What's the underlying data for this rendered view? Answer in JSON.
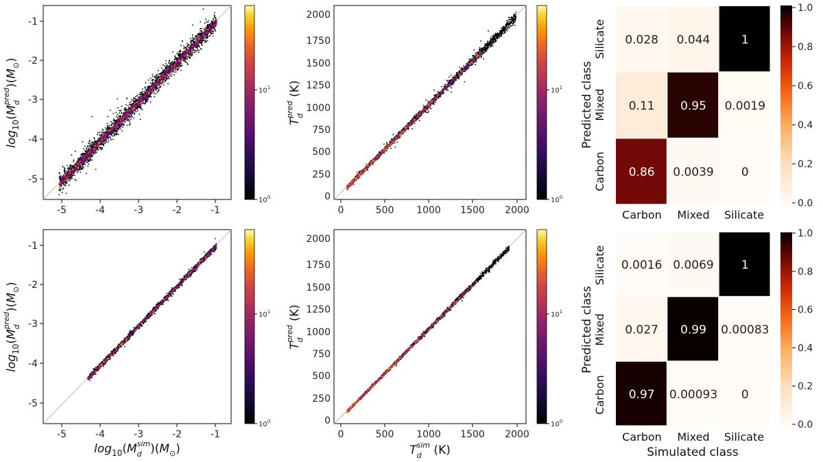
{
  "chart_data": [
    {
      "id": "p1",
      "type": "scatter",
      "subtype": "2d-histogram",
      "xlim": [
        -5.5,
        -0.6
      ],
      "ylim": [
        -5.5,
        -0.6
      ],
      "xticks": [
        "-5",
        "-4",
        "-3",
        "-2",
        "-1"
      ],
      "yticks": [
        "-5",
        "-4",
        "-3",
        "-2",
        "-1"
      ],
      "ylabel": "log10(Md^pred)(M⊙)",
      "xlabel": "",
      "spread": 0.13,
      "diagonal": true,
      "colorbar": {
        "scale": "log",
        "ticks": [
          "10^0",
          "10^1"
        ],
        "cmap": "inferno"
      }
    },
    {
      "id": "p2",
      "type": "scatter",
      "subtype": "2d-histogram",
      "xlim": [
        -80,
        2100
      ],
      "ylim": [
        -80,
        2100
      ],
      "xticks": [
        "0",
        "500",
        "1000",
        "1500",
        "2000"
      ],
      "yticks": [
        "0",
        "250",
        "500",
        "750",
        "1000",
        "1250",
        "1500",
        "1750",
        "2000"
      ],
      "ylabel": "Td^pred (K)",
      "xlabel": "",
      "spread": 0.055,
      "diagonal": true,
      "colorbar": {
        "scale": "log",
        "ticks": [
          "10^0",
          "10^1"
        ],
        "cmap": "inferno"
      }
    },
    {
      "id": "p3",
      "type": "heatmap",
      "x_categories": [
        "Carbon",
        "Mixed",
        "Silicate"
      ],
      "y_categories": [
        "Silicate",
        "Mixed",
        "Carbon"
      ],
      "values": [
        [
          "0.028",
          "0.044",
          "1"
        ],
        [
          "0.11",
          "0.95",
          "0.0019"
        ],
        [
          "0.86",
          "0.0039",
          "0"
        ]
      ],
      "ylabel": "Predicted class",
      "xlabel": "",
      "colorbar": {
        "ticks": [
          "1.0",
          "0.8",
          "0.6",
          "0.4",
          "0.2",
          "0.0"
        ],
        "cmap": "gist_heat_r"
      }
    },
    {
      "id": "p4",
      "type": "scatter",
      "subtype": "2d-histogram",
      "xlim": [
        -5.5,
        -0.6
      ],
      "ylim": [
        -5.5,
        -0.6
      ],
      "xticks": [
        "-5",
        "-4",
        "-3",
        "-2",
        "-1"
      ],
      "yticks": [
        "-5",
        "-4",
        "-3",
        "-2",
        "-1"
      ],
      "ylabel": "log10(Md^pred)(M⊙)",
      "xlabel": "log10(Md^sim)(M⊙)",
      "spread": 0.045,
      "diagonal": true,
      "colorbar": {
        "scale": "log",
        "ticks": [
          "10^0",
          "10^1"
        ],
        "cmap": "inferno"
      }
    },
    {
      "id": "p5",
      "type": "scatter",
      "subtype": "2d-histogram",
      "xlim": [
        -80,
        2100
      ],
      "ylim": [
        -80,
        2100
      ],
      "xticks": [
        "0",
        "500",
        "1000",
        "1500",
        "2000"
      ],
      "yticks": [
        "0",
        "250",
        "500",
        "750",
        "1000",
        "1250",
        "1500",
        "1750",
        "2000"
      ],
      "ylabel": "Td^pred (K)",
      "xlabel": "Td^sim (K)",
      "spread": 0.035,
      "diagonal": true,
      "colorbar": {
        "scale": "log",
        "ticks": [
          "10^0",
          "10^1"
        ],
        "cmap": "inferno"
      }
    },
    {
      "id": "p6",
      "type": "heatmap",
      "x_categories": [
        "Carbon",
        "Mixed",
        "Silicate"
      ],
      "y_categories": [
        "Silicate",
        "Mixed",
        "Carbon"
      ],
      "values": [
        [
          "0.0016",
          "0.0069",
          "1"
        ],
        [
          "0.027",
          "0.99",
          "0.00083"
        ],
        [
          "0.97",
          "0.00093",
          "0"
        ]
      ],
      "ylabel": "Predicted class",
      "xlabel": "Simulated class",
      "colorbar": {
        "ticks": [
          "1.0",
          "0.8",
          "0.6",
          "0.4",
          "0.2",
          "0.0"
        ],
        "cmap": "gist_heat_r"
      }
    }
  ],
  "colors": {
    "diagonal": "#bdbdbd",
    "text_dark": "#222222",
    "text_light": "#ffffff"
  }
}
